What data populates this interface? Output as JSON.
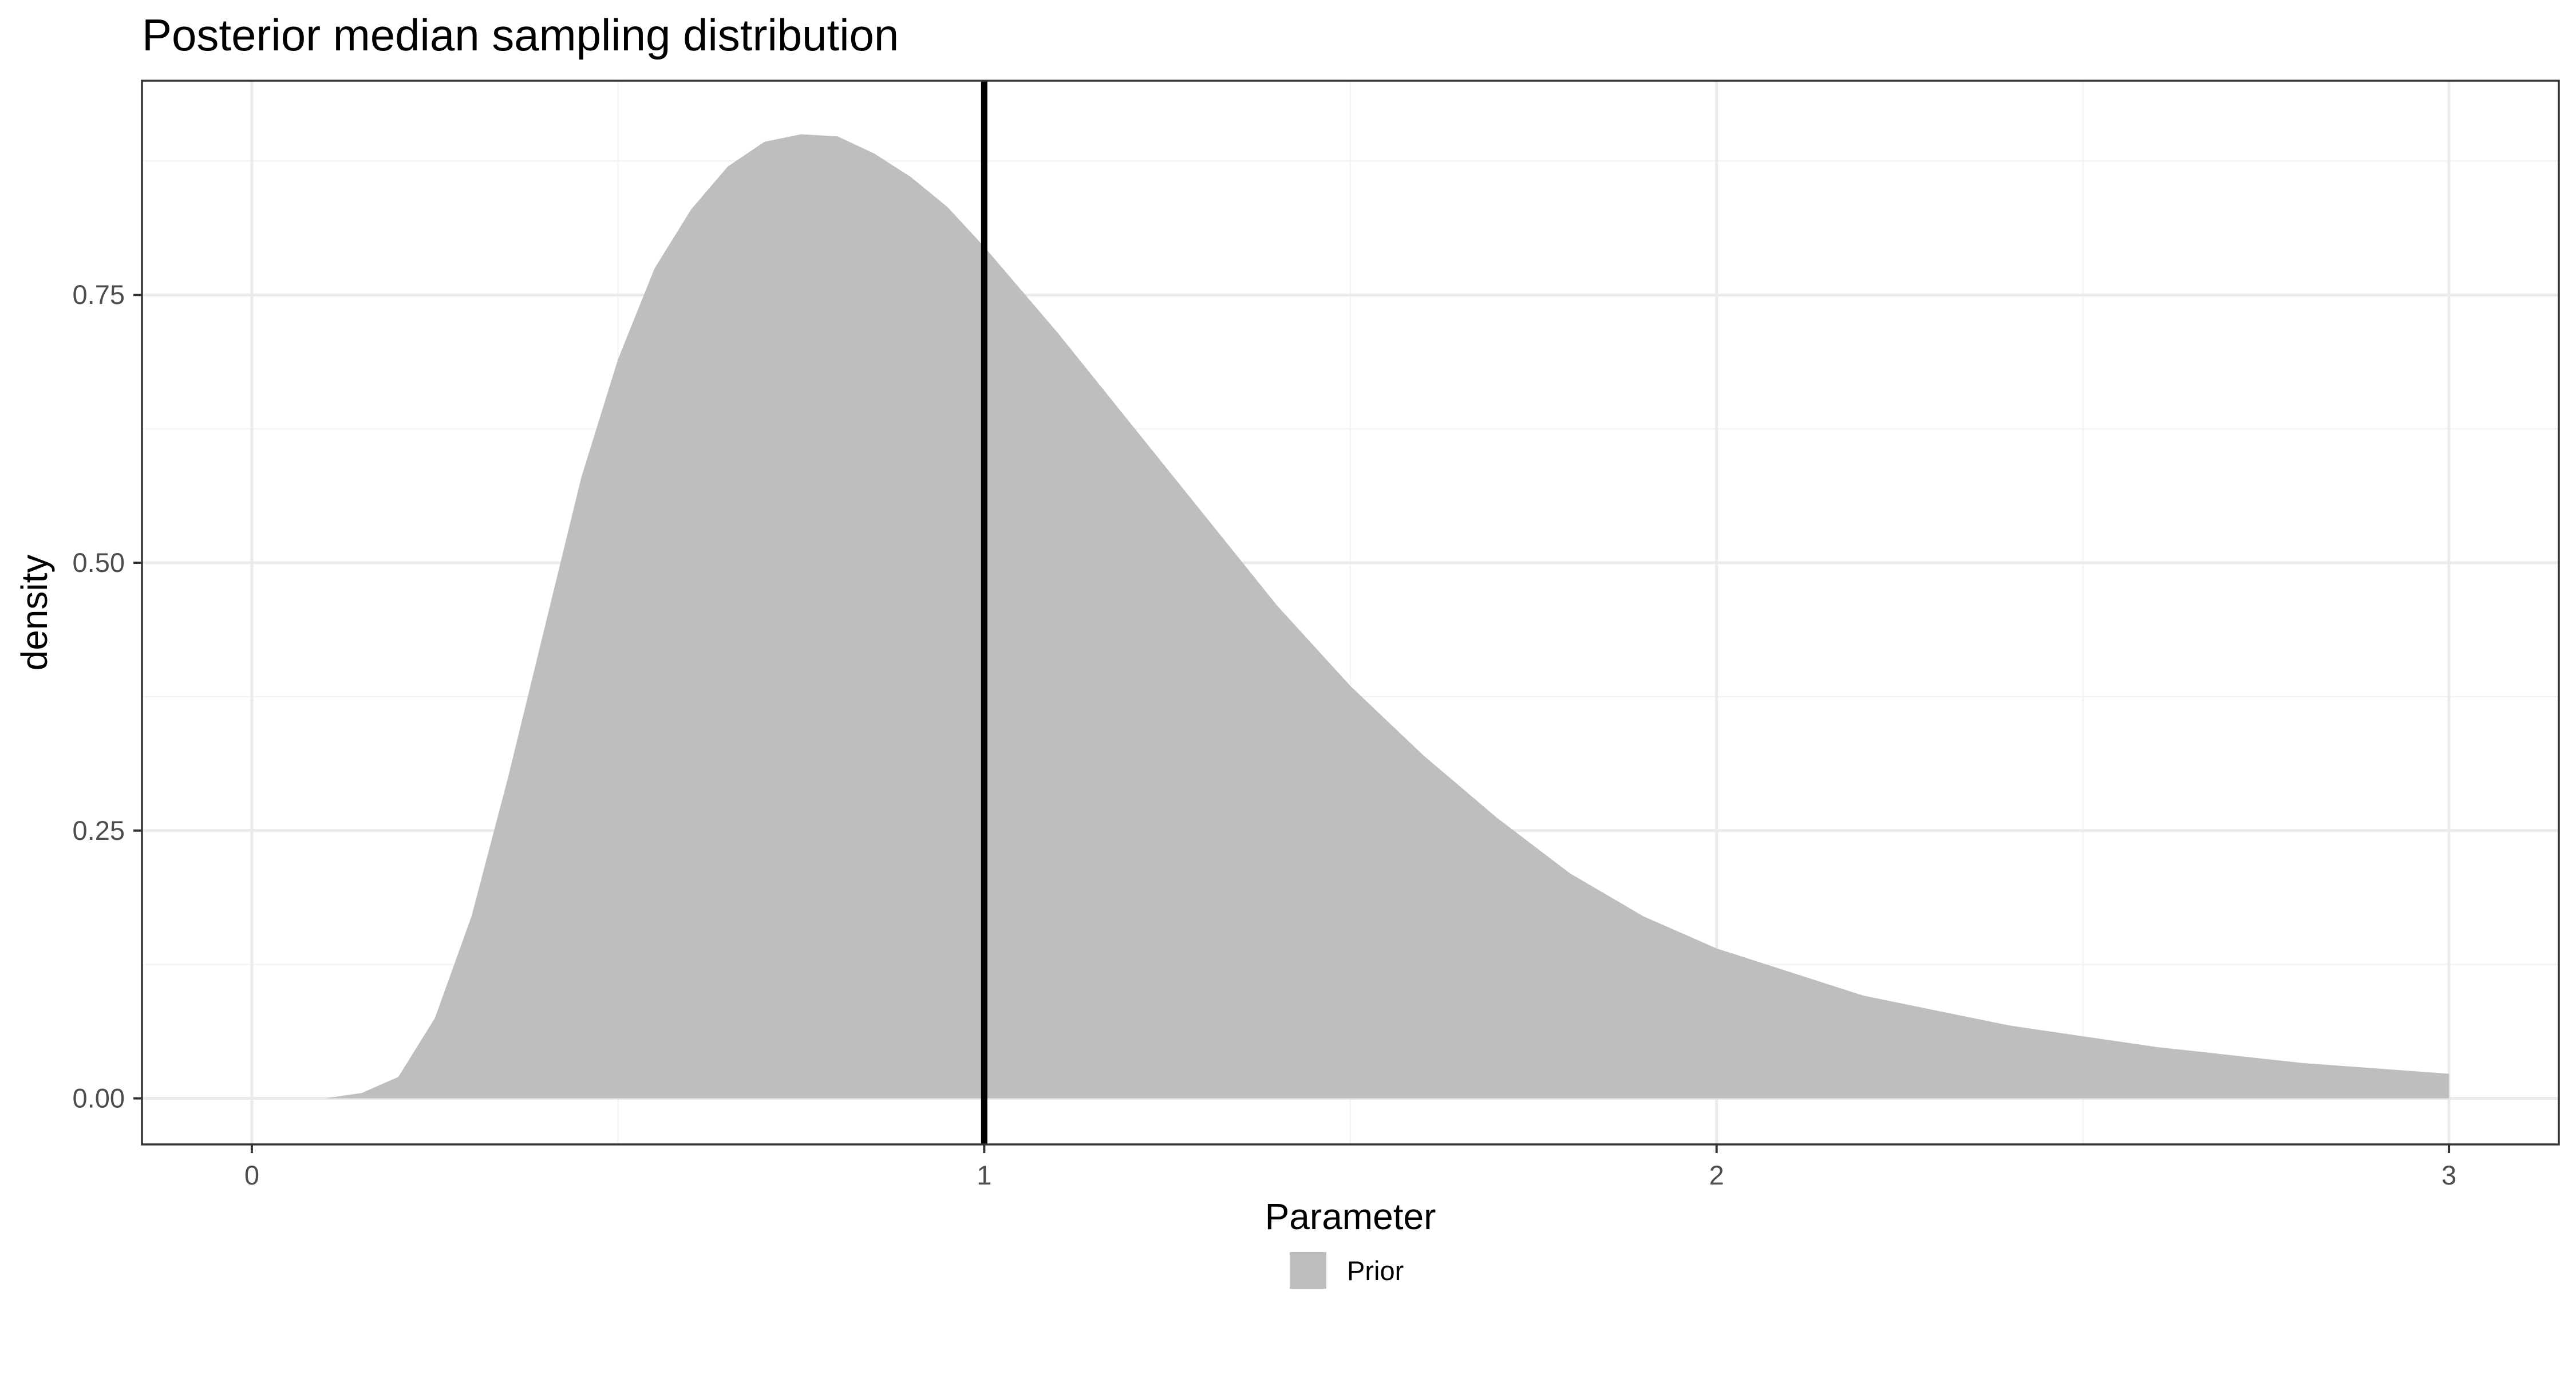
{
  "chart_data": {
    "type": "area",
    "title": "Posterior median sampling distribution",
    "xlabel": "Parameter",
    "ylabel": "density",
    "xlim": [
      -0.15,
      3.15
    ],
    "ylim": [
      -0.043,
      0.95
    ],
    "x_ticks": [
      0,
      1,
      2,
      3
    ],
    "x_tick_labels": [
      "0",
      "1",
      "2",
      "3"
    ],
    "y_ticks": [
      0,
      0.25,
      0.5,
      0.75
    ],
    "y_tick_labels": [
      "0.00",
      "0.25",
      "0.50",
      "0.75"
    ],
    "grid": true,
    "legend_position": "bottom",
    "series": [
      {
        "name": "Prior",
        "color": "#bebebe",
        "x": [
          0.0,
          0.1,
          0.15,
          0.2,
          0.25,
          0.3,
          0.35,
          0.4,
          0.45,
          0.5,
          0.55,
          0.6,
          0.65,
          0.7,
          0.75,
          0.8,
          0.85,
          0.9,
          0.95,
          1.0,
          1.1,
          1.2,
          1.3,
          1.4,
          1.5,
          1.6,
          1.7,
          1.8,
          1.9,
          2.0,
          2.2,
          2.4,
          2.6,
          2.8,
          3.0
        ],
        "y": [
          0.0,
          0.0,
          0.005,
          0.02,
          0.075,
          0.17,
          0.3,
          0.44,
          0.58,
          0.69,
          0.775,
          0.83,
          0.87,
          0.893,
          0.9,
          0.898,
          0.882,
          0.86,
          0.832,
          0.795,
          0.715,
          0.63,
          0.545,
          0.46,
          0.385,
          0.32,
          0.262,
          0.21,
          0.17,
          0.14,
          0.096,
          0.068,
          0.048,
          0.033,
          0.023
        ]
      }
    ],
    "reference_line": {
      "x": 1,
      "color": "#000000"
    }
  }
}
